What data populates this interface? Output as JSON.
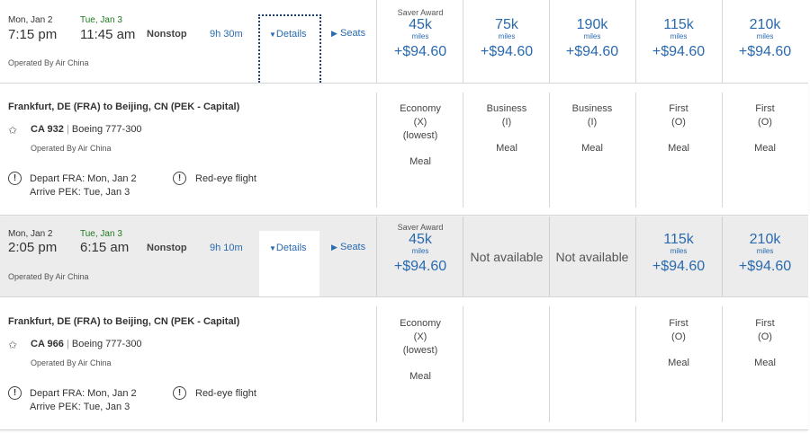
{
  "flights": [
    {
      "dep_date": "Mon, Jan 2",
      "arr_date": "Tue, Jan 3",
      "dep_time": "7:15 pm",
      "arr_time": "11:45 am",
      "stops": "Nonstop",
      "duration": "9h 30m",
      "details_label": "Details",
      "seats_label": "Seats",
      "operated_by": "Operated By Air China",
      "fares": [
        {
          "saver_label": "Saver Award",
          "miles": "45k",
          "miles_unit": "miles",
          "price": "+$94.60"
        },
        {
          "saver_label": "",
          "miles": "75k",
          "miles_unit": "miles",
          "price": "+$94.60"
        },
        {
          "saver_label": "",
          "miles": "190k",
          "miles_unit": "miles",
          "price": "+$94.60"
        },
        {
          "saver_label": "",
          "miles": "115k",
          "miles_unit": "miles",
          "price": "+$94.60"
        },
        {
          "saver_label": "",
          "miles": "210k",
          "miles_unit": "miles",
          "price": "+$94.60"
        }
      ],
      "detail": {
        "route": "Frankfurt, DE (FRA) to Beijing, CN (PEK - Capital)",
        "flight_number": "CA 932",
        "separator": "|",
        "aircraft": "Boeing 777-300",
        "operated_by": "Operated By Air China",
        "depart_info": "Depart FRA: Mon, Jan 2",
        "arrive_info": "Arrive PEK: Tue, Jan 3",
        "red_eye": "Red-eye flight",
        "cabins": [
          {
            "line1": "Economy",
            "line2": "(X)",
            "line3": "(lowest)",
            "meal": "Meal"
          },
          {
            "line1": "Business",
            "line2": "(I)",
            "line3": "",
            "meal": "Meal"
          },
          {
            "line1": "Business",
            "line2": "(I)",
            "line3": "",
            "meal": "Meal"
          },
          {
            "line1": "First",
            "line2": "(O)",
            "line3": "",
            "meal": "Meal"
          },
          {
            "line1": "First",
            "line2": "(O)",
            "line3": "",
            "meal": "Meal"
          }
        ]
      }
    },
    {
      "dep_date": "Mon, Jan 2",
      "arr_date": "Tue, Jan 3",
      "dep_time": "2:05 pm",
      "arr_time": "6:15 am",
      "stops": "Nonstop",
      "duration": "9h 10m",
      "details_label": "Details",
      "seats_label": "Seats",
      "operated_by": "Operated By Air China",
      "fares": [
        {
          "saver_label": "Saver Award",
          "miles": "45k",
          "miles_unit": "miles",
          "price": "+$94.60"
        },
        {
          "not_available": "Not available"
        },
        {
          "not_available": "Not available"
        },
        {
          "saver_label": "",
          "miles": "115k",
          "miles_unit": "miles",
          "price": "+$94.60"
        },
        {
          "saver_label": "",
          "miles": "210k",
          "miles_unit": "miles",
          "price": "+$94.60"
        }
      ],
      "detail": {
        "route": "Frankfurt, DE (FRA) to Beijing, CN (PEK - Capital)",
        "flight_number": "CA 966",
        "separator": "|",
        "aircraft": "Boeing 777-300",
        "operated_by": "Operated By Air China",
        "depart_info": "Depart FRA: Mon, Jan 2",
        "arrive_info": "Arrive PEK: Tue, Jan 3",
        "red_eye": "Red-eye flight",
        "cabins": [
          {
            "line1": "Economy",
            "line2": "(X)",
            "line3": "(lowest)",
            "meal": "Meal"
          },
          {
            "line1": "",
            "line2": "",
            "line3": "",
            "meal": ""
          },
          {
            "line1": "",
            "line2": "",
            "line3": "",
            "meal": ""
          },
          {
            "line1": "First",
            "line2": "(O)",
            "line3": "",
            "meal": "Meal"
          },
          {
            "line1": "First",
            "line2": "(O)",
            "line3": "",
            "meal": "Meal"
          }
        ]
      }
    }
  ],
  "icons": {
    "star": "star-alliance-icon",
    "alert": "alert-circle-icon",
    "caret_down": "caret-down-icon",
    "caret_right": "caret-right-icon"
  },
  "colors": {
    "link_blue": "#2a6aae",
    "arrival_green": "#1f7a1f",
    "focus_outline": "#1d3f7a",
    "row_gray": "#ececec"
  }
}
